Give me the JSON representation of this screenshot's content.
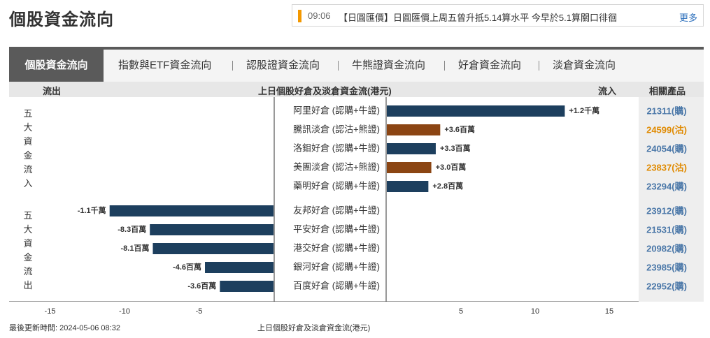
{
  "page": {
    "title": "個股資金流向"
  },
  "news": {
    "time": "09:06",
    "headline": "【日圓匯價】日圓匯價上周五曾升抵5.14算水平 今早於5.1算關口徘徊",
    "more_label": "更多"
  },
  "tabs": [
    {
      "label": "個股資金流向",
      "active": true
    },
    {
      "label": "指數與ETF資金流向",
      "active": false
    },
    {
      "label": "認股證資金流向",
      "active": false
    },
    {
      "label": "牛熊證資金流向",
      "active": false
    },
    {
      "label": "好倉資金流向",
      "active": false
    },
    {
      "label": "淡倉資金流向",
      "active": false
    }
  ],
  "header": {
    "outflow": "流出",
    "center": "上日個股好倉及淡倉資金流(港元)",
    "inflow": "流入",
    "products": "相關產品"
  },
  "groups": {
    "inflow": "五大資金流入",
    "outflow": "五大資金流出"
  },
  "colors": {
    "bull": "#1d3f5e",
    "bear": "#8b4513",
    "product_bull": "#4a77a8",
    "product_bear": "#e08a00"
  },
  "chart_data": {
    "type": "bar",
    "orientation": "horizontal",
    "unit_note": "bar length in 百萬港元",
    "xlim": [
      -15,
      15
    ],
    "xticks": [
      -15,
      -10,
      -5,
      5,
      10,
      15
    ],
    "grid": false,
    "series": [
      {
        "name": "阿里好倉 (認購+牛證)",
        "value": 12,
        "label": "+1.2千萬",
        "side": "bull",
        "product": "21311(購)"
      },
      {
        "name": "騰訊淡倉 (認沽+熊證)",
        "value": 3.6,
        "label": "+3.6百萬",
        "side": "bear",
        "product": "24599(沽)"
      },
      {
        "name": "洛鉬好倉 (認購+牛證)",
        "value": 3.3,
        "label": "+3.3百萬",
        "side": "bull",
        "product": "24054(購)"
      },
      {
        "name": "美團淡倉 (認沽+熊證)",
        "value": 3.0,
        "label": "+3.0百萬",
        "side": "bear",
        "product": "23837(沽)"
      },
      {
        "name": "藥明好倉 (認購+牛證)",
        "value": 2.8,
        "label": "+2.8百萬",
        "side": "bull",
        "product": "23294(購)"
      },
      {
        "name": "友邦好倉 (認購+牛證)",
        "value": -11,
        "label": "-1.1千萬",
        "side": "bull",
        "product": "23912(購)"
      },
      {
        "name": "平安好倉 (認購+牛證)",
        "value": -8.3,
        "label": "-8.3百萬",
        "side": "bull",
        "product": "21531(購)"
      },
      {
        "name": "港交好倉 (認購+牛證)",
        "value": -8.1,
        "label": "-8.1百萬",
        "side": "bull",
        "product": "20982(購)"
      },
      {
        "name": "銀河好倉 (認購+牛證)",
        "value": -4.6,
        "label": "-4.6百萬",
        "side": "bull",
        "product": "23985(購)"
      },
      {
        "name": "百度好倉 (認購+牛證)",
        "value": -3.6,
        "label": "-3.6百萬",
        "side": "bull",
        "product": "22952(購)"
      }
    ]
  },
  "footer": {
    "updated": "最後更新時間: 2024-05-06 08:32",
    "caption": "上日個股好倉及淡倉資金流(港元)"
  }
}
